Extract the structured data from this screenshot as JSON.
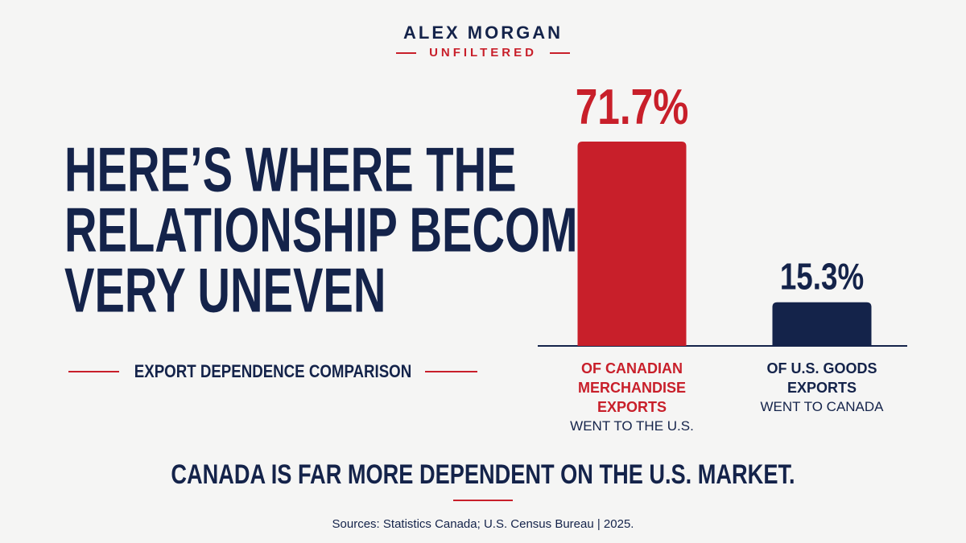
{
  "brand": {
    "name": "ALEX MORGAN",
    "tagline": "UNFILTERED"
  },
  "headline_lines": [
    "HERE’S WHERE THE",
    "RELATIONSHIP BECOMES",
    "VERY UNEVEN"
  ],
  "chart_data": {
    "type": "bar",
    "subtitle": "EXPORT DEPENDENCE COMPARISON",
    "categories": [
      "OF CANADIAN MERCHANDISE EXPORTS",
      "OF U.S. GOODS EXPORTS"
    ],
    "category_notes": [
      "WENT TO THE U.S.",
      "WENT TO CANADA"
    ],
    "values": [
      71.7,
      15.3
    ],
    "value_labels": [
      "71.7%",
      "15.3%"
    ],
    "colors": [
      "#c81f2a",
      "#14234a"
    ]
  },
  "conclusion": "CANADA IS FAR MORE DEPENDENT ON THE U.S. MARKET.",
  "sources": "Sources: Statistics Canada; U.S. Census Bureau | 2025."
}
